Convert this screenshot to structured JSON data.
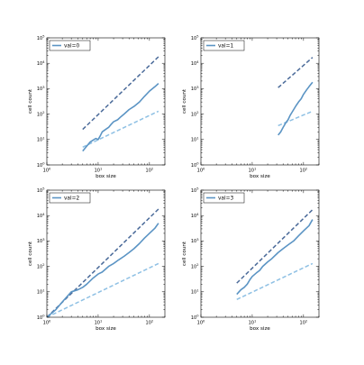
{
  "chart_data": [
    {
      "type": "line",
      "xscale": "log",
      "yscale": "log",
      "xlim": [
        1,
        200
      ],
      "ylim": [
        1,
        100000
      ],
      "xlabel": "box size",
      "ylabel": "cell count",
      "x_ticks": [
        "10^0",
        "10^1",
        "10^2"
      ],
      "y_ticks": [
        "10^0",
        "10^1",
        "10^2",
        "10^3",
        "10^4",
        "10^5"
      ],
      "legend": "top-left",
      "series": [
        {
          "name": "val=0",
          "role": "data",
          "color": "#5b94c4",
          "points": [
            [
              5,
              3.5
            ],
            [
              6,
              5.5
            ],
            [
              7,
              8
            ],
            [
              8,
              9.5
            ],
            [
              9,
              11
            ],
            [
              10,
              10
            ],
            [
              11,
              14
            ],
            [
              12,
              20
            ],
            [
              14,
              25
            ],
            [
              16,
              30
            ],
            [
              18,
              40
            ],
            [
              20,
              50
            ],
            [
              24,
              60
            ],
            [
              28,
              80
            ],
            [
              32,
              100
            ],
            [
              40,
              150
            ],
            [
              50,
              200
            ],
            [
              64,
              300
            ],
            [
              80,
              500
            ],
            [
              100,
              800
            ],
            [
              128,
              1200
            ],
            [
              150,
              1600
            ]
          ]
        },
        {
          "name": "",
          "role": "upper-reference",
          "color": "#4a6a99",
          "style": "dashed",
          "points": [
            [
              5,
              25
            ],
            [
              150,
              18000
            ]
          ]
        },
        {
          "name": "",
          "role": "lower-reference",
          "color": "#8ec0e4",
          "style": "dashed",
          "points": [
            [
              5,
              5
            ],
            [
              150,
              130
            ]
          ]
        }
      ]
    },
    {
      "type": "line",
      "xscale": "log",
      "yscale": "log",
      "xlim": [
        1,
        200
      ],
      "ylim": [
        1,
        100000
      ],
      "xlabel": "box size",
      "ylabel": "cell count",
      "x_ticks": [
        "10^0",
        "10^1",
        "10^2"
      ],
      "y_ticks": [
        "10^0",
        "10^1",
        "10^2",
        "10^3",
        "10^4",
        "10^5"
      ],
      "legend": "top-left",
      "series": [
        {
          "name": "val=1",
          "role": "data",
          "color": "#5b94c4",
          "points": [
            [
              32,
              15
            ],
            [
              36,
              20
            ],
            [
              40,
              30
            ],
            [
              45,
              45
            ],
            [
              50,
              60
            ],
            [
              55,
              90
            ],
            [
              60,
              120
            ],
            [
              70,
              200
            ],
            [
              80,
              300
            ],
            [
              90,
              400
            ],
            [
              100,
              600
            ],
            [
              115,
              900
            ],
            [
              128,
              1200
            ],
            [
              150,
              1800
            ]
          ]
        },
        {
          "name": "",
          "role": "upper-reference",
          "color": "#4a6a99",
          "style": "dashed",
          "points": [
            [
              32,
              1100
            ],
            [
              150,
              17000
            ]
          ]
        },
        {
          "name": "",
          "role": "lower-reference",
          "color": "#8ec0e4",
          "style": "dashed",
          "points": [
            [
              32,
              35
            ],
            [
              150,
              130
            ]
          ]
        }
      ]
    },
    {
      "type": "line",
      "xscale": "log",
      "yscale": "log",
      "xlim": [
        1,
        200
      ],
      "ylim": [
        1,
        100000
      ],
      "xlabel": "box size",
      "ylabel": "cell count",
      "x_ticks": [
        "10^0",
        "10^1",
        "10^2"
      ],
      "y_ticks": [
        "10^0",
        "10^1",
        "10^2",
        "10^3",
        "10^4",
        "10^5"
      ],
      "legend": "top-left",
      "series": [
        {
          "name": "val=2",
          "role": "data",
          "color": "#5b94c4",
          "points": [
            [
              1,
              1
            ],
            [
              1.5,
              2
            ],
            [
              2,
              4
            ],
            [
              3,
              10
            ],
            [
              4,
              12
            ],
            [
              5,
              15
            ],
            [
              6,
              20
            ],
            [
              8,
              35
            ],
            [
              10,
              50
            ],
            [
              12,
              60
            ],
            [
              16,
              100
            ],
            [
              20,
              130
            ],
            [
              25,
              180
            ],
            [
              32,
              250
            ],
            [
              40,
              350
            ],
            [
              50,
              500
            ],
            [
              64,
              800
            ],
            [
              80,
              1300
            ],
            [
              100,
              2000
            ],
            [
              128,
              3200
            ],
            [
              150,
              5000
            ]
          ]
        },
        {
          "name": "",
          "role": "upper-reference",
          "color": "#4a6a99",
          "style": "dashed",
          "points": [
            [
              1,
              1
            ],
            [
              150,
              18000
            ]
          ]
        },
        {
          "name": "",
          "role": "lower-reference",
          "color": "#8ec0e4",
          "style": "dashed",
          "points": [
            [
              1,
              1
            ],
            [
              150,
              130
            ]
          ]
        }
      ]
    },
    {
      "type": "line",
      "xscale": "log",
      "yscale": "log",
      "xlim": [
        1,
        200
      ],
      "ylim": [
        1,
        100000
      ],
      "xlabel": "box size",
      "ylabel": "cell count",
      "x_ticks": [
        "10^0",
        "10^1",
        "10^2"
      ],
      "y_ticks": [
        "10^0",
        "10^1",
        "10^2",
        "10^3",
        "10^4",
        "10^5"
      ],
      "legend": "top-left",
      "series": [
        {
          "name": "val=3",
          "role": "data",
          "color": "#5b94c4",
          "points": [
            [
              5,
              8
            ],
            [
              6,
              12
            ],
            [
              7,
              15
            ],
            [
              8,
              20
            ],
            [
              9,
              30
            ],
            [
              10,
              40
            ],
            [
              12,
              55
            ],
            [
              14,
              70
            ],
            [
              16,
              100
            ],
            [
              20,
              150
            ],
            [
              24,
              200
            ],
            [
              32,
              350
            ],
            [
              40,
              500
            ],
            [
              50,
              700
            ],
            [
              64,
              1000
            ],
            [
              80,
              1600
            ],
            [
              100,
              2500
            ],
            [
              128,
              4000
            ],
            [
              150,
              7000
            ]
          ]
        },
        {
          "name": "",
          "role": "upper-reference",
          "color": "#4a6a99",
          "style": "dashed",
          "points": [
            [
              5,
              22
            ],
            [
              150,
              17000
            ]
          ]
        },
        {
          "name": "",
          "role": "lower-reference",
          "color": "#8ec0e4",
          "style": "dashed",
          "points": [
            [
              5,
              5
            ],
            [
              150,
              130
            ]
          ]
        }
      ]
    }
  ]
}
